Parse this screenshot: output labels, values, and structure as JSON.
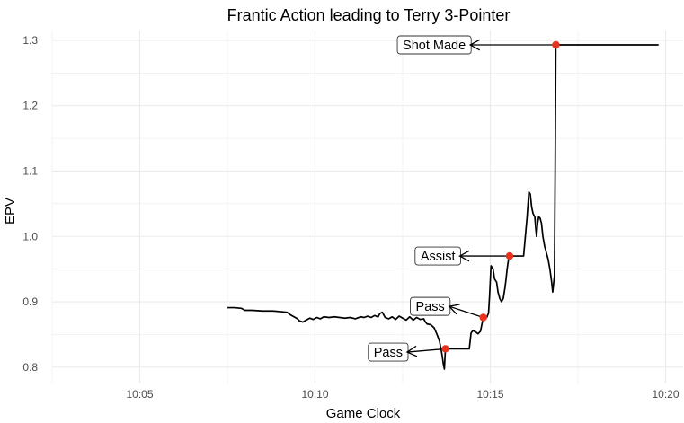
{
  "chart_data": {
    "type": "line",
    "title": "Frantic Action leading to Terry 3-Pointer",
    "xlabel": "Game Clock",
    "ylabel": "EPV",
    "xlim": [
      "10:02.5",
      "10:20.5"
    ],
    "ylim": [
      0.775,
      1.315
    ],
    "x_ticks": [
      "10:05",
      "10:10",
      "10:15",
      "10:20"
    ],
    "y_ticks": [
      "0.8",
      "0.9",
      "1.0",
      "1.1",
      "1.2",
      "1.3"
    ],
    "grid": true,
    "series": [
      {
        "points": [
          [
            "10:07.50",
            0.891
          ],
          [
            "10:07.70",
            0.891
          ],
          [
            "10:07.90",
            0.89
          ],
          [
            "10:08.00",
            0.887
          ],
          [
            "10:08.20",
            0.887
          ],
          [
            "10:08.50",
            0.886
          ],
          [
            "10:08.80",
            0.886
          ],
          [
            "10:09.00",
            0.885
          ],
          [
            "10:09.20",
            0.884
          ],
          [
            "10:09.30",
            0.88
          ],
          [
            "10:09.40",
            0.877
          ],
          [
            "10:09.50",
            0.874
          ],
          [
            "10:09.55",
            0.871
          ],
          [
            "10:09.65",
            0.869
          ],
          [
            "10:09.75",
            0.872
          ],
          [
            "10:09.85",
            0.875
          ],
          [
            "10:09.95",
            0.873
          ],
          [
            "10:10.05",
            0.876
          ],
          [
            "10:10.15",
            0.874
          ],
          [
            "10:10.25",
            0.877
          ],
          [
            "10:10.40",
            0.876
          ],
          [
            "10:10.55",
            0.877
          ],
          [
            "10:10.70",
            0.876
          ],
          [
            "10:10.85",
            0.875
          ],
          [
            "10:11.00",
            0.876
          ],
          [
            "10:11.15",
            0.874
          ],
          [
            "10:11.30",
            0.877
          ],
          [
            "10:11.40",
            0.876
          ],
          [
            "10:11.50",
            0.878
          ],
          [
            "10:11.60",
            0.876
          ],
          [
            "10:11.70",
            0.879
          ],
          [
            "10:11.80",
            0.877
          ],
          [
            "10:11.85",
            0.882
          ],
          [
            "10:11.92",
            0.884
          ],
          [
            "10:12.00",
            0.876
          ],
          [
            "10:12.10",
            0.874
          ],
          [
            "10:12.20",
            0.877
          ],
          [
            "10:12.30",
            0.873
          ],
          [
            "10:12.40",
            0.878
          ],
          [
            "10:12.50",
            0.875
          ],
          [
            "10:12.60",
            0.872
          ],
          [
            "10:12.70",
            0.877
          ],
          [
            "10:12.80",
            0.872
          ],
          [
            "10:12.90",
            0.876
          ],
          [
            "10:13.00",
            0.873
          ],
          [
            "10:13.10",
            0.874
          ],
          [
            "10:13.15",
            0.869
          ],
          [
            "10:13.20",
            0.866
          ],
          [
            "10:13.30",
            0.865
          ],
          [
            "10:13.40",
            0.86
          ],
          [
            "10:13.48",
            0.85
          ],
          [
            "10:13.55",
            0.84
          ],
          [
            "10:13.62",
            0.82
          ],
          [
            "10:13.66",
            0.805
          ],
          [
            "10:13.69",
            0.797
          ],
          [
            "10:13.72",
            0.828
          ],
          [
            "10:14.40",
            0.828
          ],
          [
            "10:14.45",
            0.852
          ],
          [
            "10:14.50",
            0.856
          ],
          [
            "10:14.58",
            0.854
          ],
          [
            "10:14.65",
            0.851
          ],
          [
            "10:14.72",
            0.855
          ],
          [
            "10:14.80",
            0.876
          ],
          [
            "10:14.90",
            0.876
          ],
          [
            "10:14.95",
            0.883
          ],
          [
            "10:14.98",
            0.91
          ],
          [
            "10:15.02",
            0.955
          ],
          [
            "10:15.08",
            0.95
          ],
          [
            "10:15.12",
            0.935
          ],
          [
            "10:15.18",
            0.93
          ],
          [
            "10:15.22",
            0.915
          ],
          [
            "10:15.27",
            0.905
          ],
          [
            "10:15.32",
            0.9
          ],
          [
            "10:15.37",
            0.905
          ],
          [
            "10:15.42",
            0.922
          ],
          [
            "10:15.45",
            0.935
          ],
          [
            "10:15.48",
            0.95
          ],
          [
            "10:15.52",
            0.965
          ],
          [
            "10:15.55",
            0.97
          ],
          [
            "10:15.95",
            0.97
          ],
          [
            "10:16.05",
            1.03
          ],
          [
            "10:16.10",
            1.068
          ],
          [
            "10:16.14",
            1.065
          ],
          [
            "10:16.18",
            1.045
          ],
          [
            "10:16.22",
            1.035
          ],
          [
            "10:16.27",
            1.03
          ],
          [
            "10:16.30",
            1.01
          ],
          [
            "10:16.32",
            1.0
          ],
          [
            "10:16.35",
            1.02
          ],
          [
            "10:16.38",
            1.03
          ],
          [
            "10:16.42",
            1.028
          ],
          [
            "10:16.46",
            1.02
          ],
          [
            "10:16.50",
            1.0
          ],
          [
            "10:16.55",
            0.985
          ],
          [
            "10:16.60",
            0.975
          ],
          [
            "10:16.65",
            0.965
          ],
          [
            "10:16.70",
            0.95
          ],
          [
            "10:16.75",
            0.93
          ],
          [
            "10:16.78",
            0.915
          ],
          [
            "10:16.80",
            0.925
          ],
          [
            "10:16.83",
            0.94
          ],
          [
            "10:16.85",
            1.1
          ],
          [
            "10:16.87",
            1.293
          ],
          [
            "10:19.80",
            1.293
          ]
        ]
      }
    ],
    "annotations": [
      {
        "text": "Shot Made",
        "x": "10:16.87",
        "y": 1.293,
        "label_x": "10:14.30",
        "label_y": 1.293
      },
      {
        "text": "Assist",
        "x": "10:15.55",
        "y": 0.97,
        "label_x": "10:14.00",
        "label_y": 0.97
      },
      {
        "text": "Pass",
        "x": "10:14.80",
        "y": 0.876,
        "label_x": "10:13.70",
        "label_y": 0.893
      },
      {
        "text": "Pass",
        "x": "10:13.72",
        "y": 0.828,
        "label_x": "10:12.50",
        "label_y": 0.823
      }
    ],
    "colors": {
      "line": "#000000",
      "marker": "#e8321e",
      "grid": "#ebebeb"
    }
  }
}
